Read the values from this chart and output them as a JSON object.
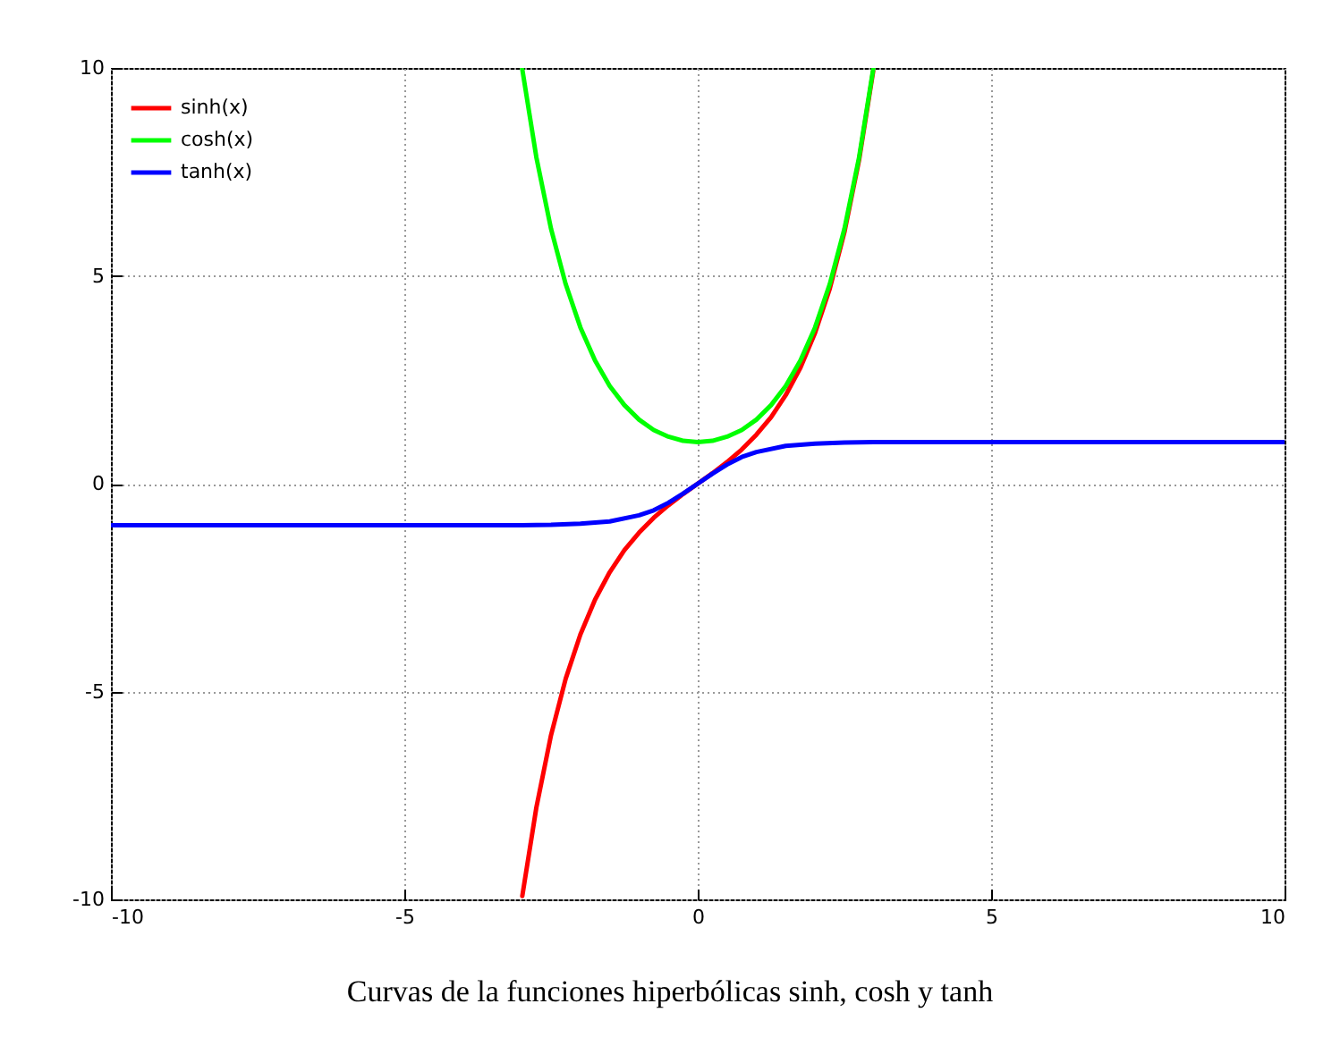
{
  "chart_data": {
    "type": "line",
    "xlim": [
      -10,
      10
    ],
    "ylim": [
      -10,
      10
    ],
    "xticks": [
      -10,
      -5,
      0,
      5,
      10
    ],
    "yticks": [
      -10,
      -5,
      0,
      5,
      10
    ],
    "grid": true,
    "legend": "top left",
    "marker": "none",
    "line_style": "solid",
    "annotations": [
      "Curvas de la funciones hiperbólicas sinh, cosh y tanh"
    ],
    "series": [
      {
        "name": "sinh(x)",
        "color": "#ff0000",
        "x": [
          -2.99,
          -2.75,
          -2.5,
          -2.25,
          -2,
          -1.75,
          -1.5,
          -1.25,
          -1,
          -0.75,
          -0.5,
          -0.25,
          0,
          0.25,
          0.5,
          0.75,
          1,
          1.25,
          1.5,
          1.75,
          2,
          2.25,
          2.5,
          2.75,
          2.99
        ],
        "values": [
          -9.92,
          -7.79,
          -6.05,
          -4.69,
          -3.63,
          -2.79,
          -2.13,
          -1.6,
          -1.18,
          -0.82,
          -0.52,
          -0.25,
          0,
          0.25,
          0.52,
          0.82,
          1.18,
          1.6,
          2.13,
          2.79,
          3.63,
          4.69,
          6.05,
          7.79,
          9.92
        ]
      },
      {
        "name": "cosh(x)",
        "color": "#00ff00",
        "x": [
          -2.99,
          -2.75,
          -2.5,
          -2.25,
          -2,
          -1.75,
          -1.5,
          -1.25,
          -1,
          -0.75,
          -0.5,
          -0.25,
          0,
          0.25,
          0.5,
          0.75,
          1,
          1.25,
          1.5,
          1.75,
          2,
          2.25,
          2.5,
          2.75,
          2.99
        ],
        "values": [
          9.97,
          7.85,
          6.13,
          4.8,
          3.76,
          2.96,
          2.35,
          1.89,
          1.54,
          1.29,
          1.13,
          1.03,
          1,
          1.03,
          1.13,
          1.29,
          1.54,
          1.89,
          2.35,
          2.96,
          3.76,
          4.8,
          6.13,
          7.85,
          9.97
        ]
      },
      {
        "name": "tanh(x)",
        "color": "#0000ff",
        "x": [
          -10,
          -8,
          -6,
          -4,
          -3,
          -2.5,
          -2,
          -1.5,
          -1,
          -0.75,
          -0.5,
          -0.25,
          0,
          0.25,
          0.5,
          0.75,
          1,
          1.5,
          2,
          2.5,
          3,
          4,
          6,
          8,
          10
        ],
        "values": [
          -1,
          -1,
          -1,
          -1,
          -1,
          -0.99,
          -0.96,
          -0.91,
          -0.76,
          -0.64,
          -0.46,
          -0.24,
          0,
          0.24,
          0.46,
          0.64,
          0.76,
          0.91,
          0.96,
          0.99,
          1,
          1,
          1,
          1,
          1
        ]
      }
    ]
  }
}
